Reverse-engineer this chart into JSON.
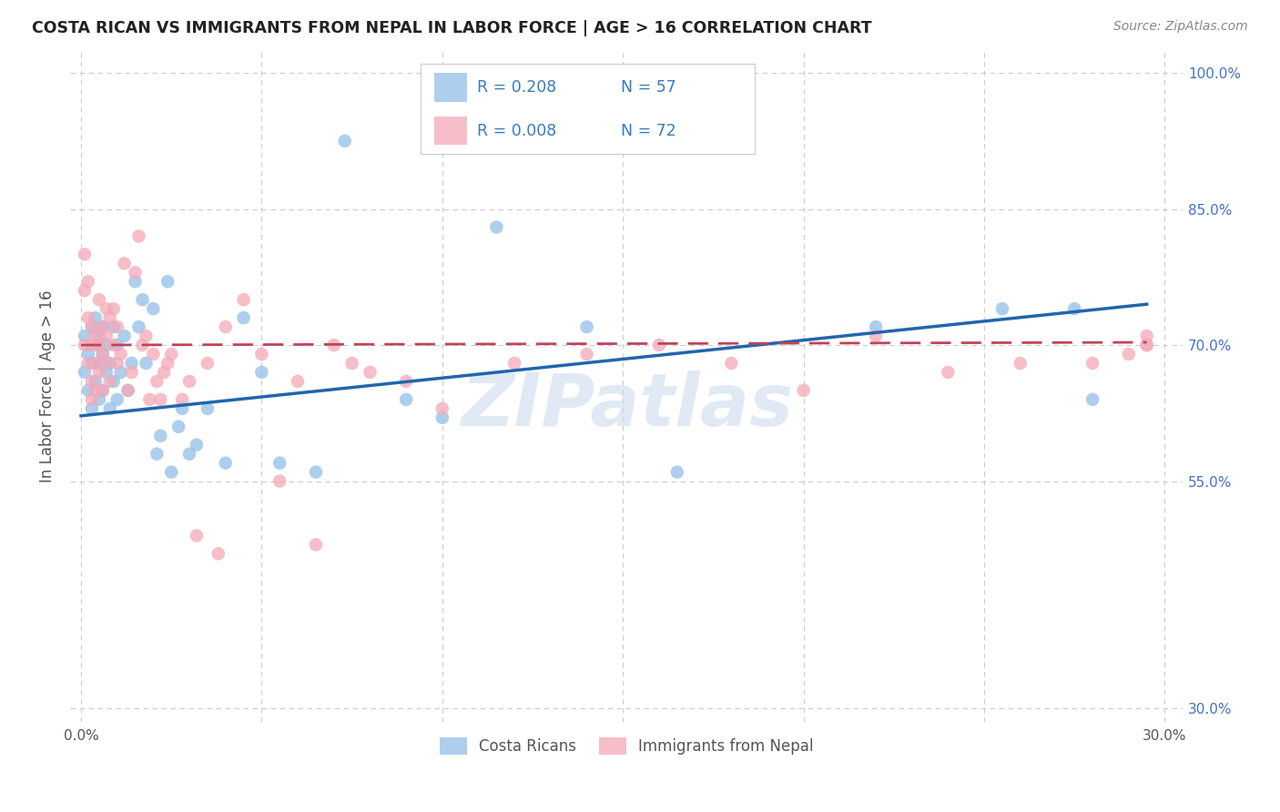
{
  "title": "COSTA RICAN VS IMMIGRANTS FROM NEPAL IN LABOR FORCE | AGE > 16 CORRELATION CHART",
  "source": "Source: ZipAtlas.com",
  "ylabel": "In Labor Force | Age > 16",
  "xlim_min": -0.003,
  "xlim_max": 0.305,
  "ylim_min": 0.285,
  "ylim_max": 1.025,
  "xtick_positions": [
    0.0,
    0.05,
    0.1,
    0.15,
    0.2,
    0.25,
    0.3
  ],
  "xticklabels": [
    "0.0%",
    "",
    "",
    "",
    "",
    "",
    "30.0%"
  ],
  "ytick_positions": [
    0.3,
    0.55,
    0.7,
    0.85,
    1.0
  ],
  "yticklabels": [
    "30.0%",
    "55.0%",
    "70.0%",
    "85.0%",
    "100.0%"
  ],
  "blue_R": 0.208,
  "blue_N": 57,
  "pink_R": 0.008,
  "pink_N": 72,
  "blue_color": "#92bfe8",
  "pink_color": "#f4a8b8",
  "blue_line_color": "#2166ac",
  "pink_line_color": "#c0445a",
  "watermark": "ZIPatlas",
  "legend_label_blue": "Costa Ricans",
  "legend_label_pink": "Immigrants from Nepal",
  "blue_line_x0": 0.0,
  "blue_line_x1": 0.295,
  "blue_line_y0": 0.622,
  "blue_line_y1": 0.745,
  "pink_line_x0": 0.0,
  "pink_line_x1": 0.295,
  "pink_line_y0": 0.7,
  "pink_line_y1": 0.703,
  "blue_x": [
    0.001,
    0.001,
    0.002,
    0.002,
    0.003,
    0.003,
    0.003,
    0.004,
    0.004,
    0.004,
    0.005,
    0.005,
    0.005,
    0.006,
    0.006,
    0.006,
    0.007,
    0.007,
    0.008,
    0.008,
    0.009,
    0.009,
    0.01,
    0.01,
    0.011,
    0.012,
    0.013,
    0.014,
    0.015,
    0.016,
    0.017,
    0.018,
    0.02,
    0.021,
    0.022,
    0.024,
    0.025,
    0.027,
    0.028,
    0.03,
    0.032,
    0.035,
    0.04,
    0.045,
    0.05,
    0.055,
    0.065,
    0.073,
    0.09,
    0.1,
    0.115,
    0.14,
    0.165,
    0.22,
    0.255,
    0.275,
    0.28
  ],
  "blue_y": [
    0.67,
    0.71,
    0.65,
    0.69,
    0.63,
    0.68,
    0.72,
    0.66,
    0.7,
    0.73,
    0.64,
    0.68,
    0.71,
    0.65,
    0.69,
    0.72,
    0.67,
    0.7,
    0.63,
    0.68,
    0.72,
    0.66,
    0.64,
    0.7,
    0.67,
    0.71,
    0.65,
    0.68,
    0.77,
    0.72,
    0.75,
    0.68,
    0.74,
    0.58,
    0.6,
    0.77,
    0.56,
    0.61,
    0.63,
    0.58,
    0.59,
    0.63,
    0.57,
    0.73,
    0.67,
    0.57,
    0.56,
    0.925,
    0.64,
    0.62,
    0.83,
    0.72,
    0.56,
    0.72,
    0.74,
    0.74,
    0.64
  ],
  "pink_x": [
    0.001,
    0.001,
    0.001,
    0.002,
    0.002,
    0.002,
    0.003,
    0.003,
    0.003,
    0.003,
    0.004,
    0.004,
    0.004,
    0.005,
    0.005,
    0.005,
    0.006,
    0.006,
    0.006,
    0.007,
    0.007,
    0.007,
    0.008,
    0.008,
    0.009,
    0.009,
    0.01,
    0.01,
    0.011,
    0.012,
    0.013,
    0.014,
    0.015,
    0.016,
    0.017,
    0.018,
    0.019,
    0.02,
    0.021,
    0.022,
    0.023,
    0.024,
    0.025,
    0.028,
    0.03,
    0.032,
    0.035,
    0.038,
    0.04,
    0.045,
    0.05,
    0.055,
    0.06,
    0.065,
    0.07,
    0.075,
    0.08,
    0.09,
    0.1,
    0.12,
    0.14,
    0.16,
    0.18,
    0.2,
    0.22,
    0.24,
    0.26,
    0.28,
    0.29,
    0.295,
    0.295,
    0.295
  ],
  "pink_y": [
    0.76,
    0.8,
    0.7,
    0.68,
    0.73,
    0.77,
    0.64,
    0.7,
    0.72,
    0.66,
    0.65,
    0.68,
    0.71,
    0.67,
    0.7,
    0.75,
    0.69,
    0.72,
    0.65,
    0.68,
    0.71,
    0.74,
    0.73,
    0.66,
    0.7,
    0.74,
    0.68,
    0.72,
    0.69,
    0.79,
    0.65,
    0.67,
    0.78,
    0.82,
    0.7,
    0.71,
    0.64,
    0.69,
    0.66,
    0.64,
    0.67,
    0.68,
    0.69,
    0.64,
    0.66,
    0.49,
    0.68,
    0.47,
    0.72,
    0.75,
    0.69,
    0.55,
    0.66,
    0.48,
    0.7,
    0.68,
    0.67,
    0.66,
    0.63,
    0.68,
    0.69,
    0.7,
    0.68,
    0.65,
    0.71,
    0.67,
    0.68,
    0.68,
    0.69,
    0.7,
    0.71,
    0.7
  ]
}
